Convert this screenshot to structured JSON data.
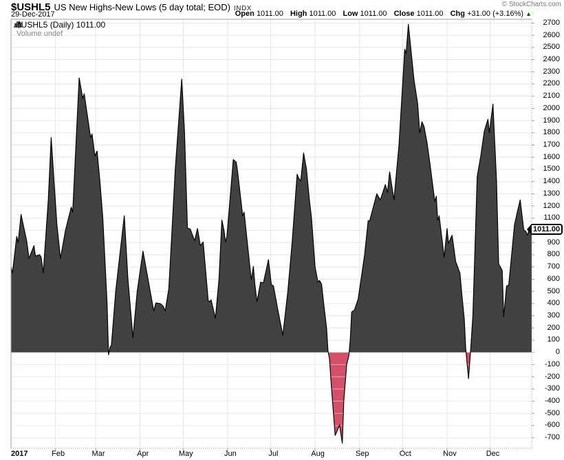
{
  "header": {
    "symbol": "$USHL5",
    "title": "US New Highs-New Lows (5 day total; EOD)",
    "exchange": "INDX",
    "date": "29-Dec-2017",
    "copyright": "© StockCharts.com",
    "quote": {
      "items": [
        {
          "label": "Open",
          "value": "1011.00"
        },
        {
          "label": "High",
          "value": "1011.00"
        },
        {
          "label": "Low",
          "value": "1011.00"
        },
        {
          "label": "Close",
          "value": "1011.00"
        },
        {
          "label": "Chg",
          "value": "+31.00 (+3.16%)"
        }
      ],
      "direction_arrow": "▲"
    }
  },
  "legend": {
    "series": "$USHL5 (Daily) 1011.00",
    "volume": "Volume undef"
  },
  "axis": {
    "price_label": "1011.00",
    "x_labels": [
      "2017",
      "Feb",
      "Mar",
      "Apr",
      "May",
      "Jun",
      "Jul",
      "Aug",
      "Sep",
      "Oct",
      "Nov",
      "Dec"
    ]
  },
  "chart_data": {
    "type": "area",
    "title": "$USHL5 (Daily)",
    "xlabel": "2017 (daily, Jan-Dec)",
    "ylabel": "New Highs minus New Lows (5 day total)",
    "x_unit": "day_of_year_2017",
    "month_start_days": [
      31,
      59,
      90,
      120,
      151,
      181,
      212,
      243,
      273,
      304,
      334
    ],
    "x_range_days": 363,
    "ylim": [
      -790,
      2740
    ],
    "y_axis": {
      "min": -700,
      "max": 2700,
      "step": 100
    },
    "grid": true,
    "legend_position": "top-left",
    "last_value": 1011.0,
    "open": 1011.0,
    "high": 1011.0,
    "low": 1011.0,
    "close": 1011.0,
    "change": 31.0,
    "change_pct": 3.16,
    "colors": {
      "positive_fill": "#414141",
      "negative_fill": "#d34f6a",
      "line": "#000000",
      "grid": "#e6e6e6",
      "border": "#a0a0a0",
      "up_arrow": "#006600"
    },
    "points": [
      [
        0,
        700
      ],
      [
        1,
        650
      ],
      [
        4,
        950
      ],
      [
        5,
        900
      ],
      [
        7,
        1130
      ],
      [
        11,
        910
      ],
      [
        12.5,
        770
      ],
      [
        16,
        875
      ],
      [
        17,
        790
      ],
      [
        20,
        800
      ],
      [
        21,
        780
      ],
      [
        22.5,
        650
      ],
      [
        26,
        1250
      ],
      [
        28,
        1760
      ],
      [
        30,
        1400
      ],
      [
        32,
        1050
      ],
      [
        34.5,
        770
      ],
      [
        38,
        1000
      ],
      [
        42,
        1190
      ],
      [
        43,
        1150
      ],
      [
        47.5,
        2250
      ],
      [
        49,
        2150
      ],
      [
        50,
        2080
      ],
      [
        51,
        2120
      ],
      [
        55.5,
        1760
      ],
      [
        56.5,
        1790
      ],
      [
        58.5,
        1610
      ],
      [
        60,
        1650
      ],
      [
        62,
        1400
      ],
      [
        64,
        1100
      ],
      [
        67,
        400
      ],
      [
        68,
        -20
      ],
      [
        69,
        40
      ],
      [
        70,
        60
      ],
      [
        73,
        500
      ],
      [
        79,
        1120
      ],
      [
        81.5,
        600
      ],
      [
        85,
        120
      ],
      [
        88,
        500
      ],
      [
        92,
        830
      ],
      [
        95.5,
        600
      ],
      [
        99.5,
        340
      ],
      [
        101,
        405
      ],
      [
        104,
        400
      ],
      [
        106,
        380
      ],
      [
        107.5,
        340
      ],
      [
        110,
        520
      ],
      [
        112,
        950
      ],
      [
        114.5,
        1500
      ],
      [
        119,
        2240
      ],
      [
        121,
        1800
      ],
      [
        123,
        1020
      ],
      [
        125,
        1010
      ],
      [
        128,
        915
      ],
      [
        130,
        1015
      ],
      [
        132,
        875
      ],
      [
        134,
        905
      ],
      [
        137.5,
        425
      ],
      [
        138.5,
        415
      ],
      [
        139.5,
        430
      ],
      [
        142.5,
        280
      ],
      [
        145,
        600
      ],
      [
        147,
        1085
      ],
      [
        148.5,
        1000
      ],
      [
        149.5,
        905
      ],
      [
        150.5,
        950
      ],
      [
        155,
        1580
      ],
      [
        157,
        1560
      ],
      [
        158,
        1480
      ],
      [
        161.5,
        1120
      ],
      [
        162.5,
        1150
      ],
      [
        167.5,
        595
      ],
      [
        169,
        705
      ],
      [
        170,
        560
      ],
      [
        171.5,
        415
      ],
      [
        174,
        575
      ],
      [
        176,
        570
      ],
      [
        179.5,
        760
      ],
      [
        181.5,
        555
      ],
      [
        183,
        545
      ],
      [
        186,
        350
      ],
      [
        189.5,
        140
      ],
      [
        193,
        500
      ],
      [
        196,
        900
      ],
      [
        199.5,
        1460
      ],
      [
        200.5,
        1430
      ],
      [
        202,
        1405
      ],
      [
        204,
        1635
      ],
      [
        206,
        1500
      ],
      [
        208,
        1250
      ],
      [
        209.5,
        1100
      ],
      [
        212,
        700
      ],
      [
        214,
        575
      ],
      [
        215,
        590
      ],
      [
        216.5,
        560
      ],
      [
        218,
        400
      ],
      [
        220,
        200
      ],
      [
        221,
        10
      ],
      [
        222,
        -50
      ],
      [
        223.5,
        -300
      ],
      [
        226,
        -680
      ],
      [
        227.5,
        -640
      ],
      [
        229,
        -595
      ],
      [
        231,
        -745
      ],
      [
        232,
        -400
      ],
      [
        234,
        -100
      ],
      [
        235.5,
        -30
      ],
      [
        236.5,
        100
      ],
      [
        237.5,
        330
      ],
      [
        239.5,
        350
      ],
      [
        242,
        435
      ],
      [
        246.5,
        800
      ],
      [
        249,
        1080
      ],
      [
        250,
        1075
      ],
      [
        255,
        1300
      ],
      [
        257.5,
        1250
      ],
      [
        261,
        1375
      ],
      [
        262.5,
        1310
      ],
      [
        264,
        1480
      ],
      [
        267,
        1250
      ],
      [
        270.5,
        1700
      ],
      [
        274.5,
        2485
      ],
      [
        275.5,
        2450
      ],
      [
        277,
        2690
      ],
      [
        281,
        2230
      ],
      [
        283.5,
        2040
      ],
      [
        285,
        1800
      ],
      [
        286.5,
        1890
      ],
      [
        288,
        1850
      ],
      [
        290,
        1720
      ],
      [
        292,
        1555
      ],
      [
        295.5,
        1235
      ],
      [
        296.5,
        1280
      ],
      [
        297.5,
        1080
      ],
      [
        298.5,
        1120
      ],
      [
        302,
        780
      ],
      [
        304,
        1015
      ],
      [
        305,
        895
      ],
      [
        307.5,
        960
      ],
      [
        310,
        745
      ],
      [
        313,
        650
      ],
      [
        314.5,
        450
      ],
      [
        316,
        275
      ],
      [
        317,
        30
      ],
      [
        319,
        -215
      ],
      [
        320.5,
        30
      ],
      [
        322,
        300
      ],
      [
        325,
        1440
      ],
      [
        327.5,
        1610
      ],
      [
        330,
        1815
      ],
      [
        332.5,
        1910
      ],
      [
        333.5,
        1800
      ],
      [
        336,
        2035
      ],
      [
        338.5,
        1405
      ],
      [
        340,
        725
      ],
      [
        341,
        705
      ],
      [
        342.5,
        670
      ],
      [
        343.5,
        290
      ],
      [
        345.5,
        545
      ],
      [
        347,
        550
      ],
      [
        349.5,
        855
      ],
      [
        351,
        1045
      ],
      [
        353,
        1150
      ],
      [
        355,
        1250
      ],
      [
        357.5,
        1005
      ],
      [
        359,
        990
      ],
      [
        360,
        960
      ],
      [
        362,
        1025
      ],
      [
        363,
        1011
      ]
    ]
  }
}
